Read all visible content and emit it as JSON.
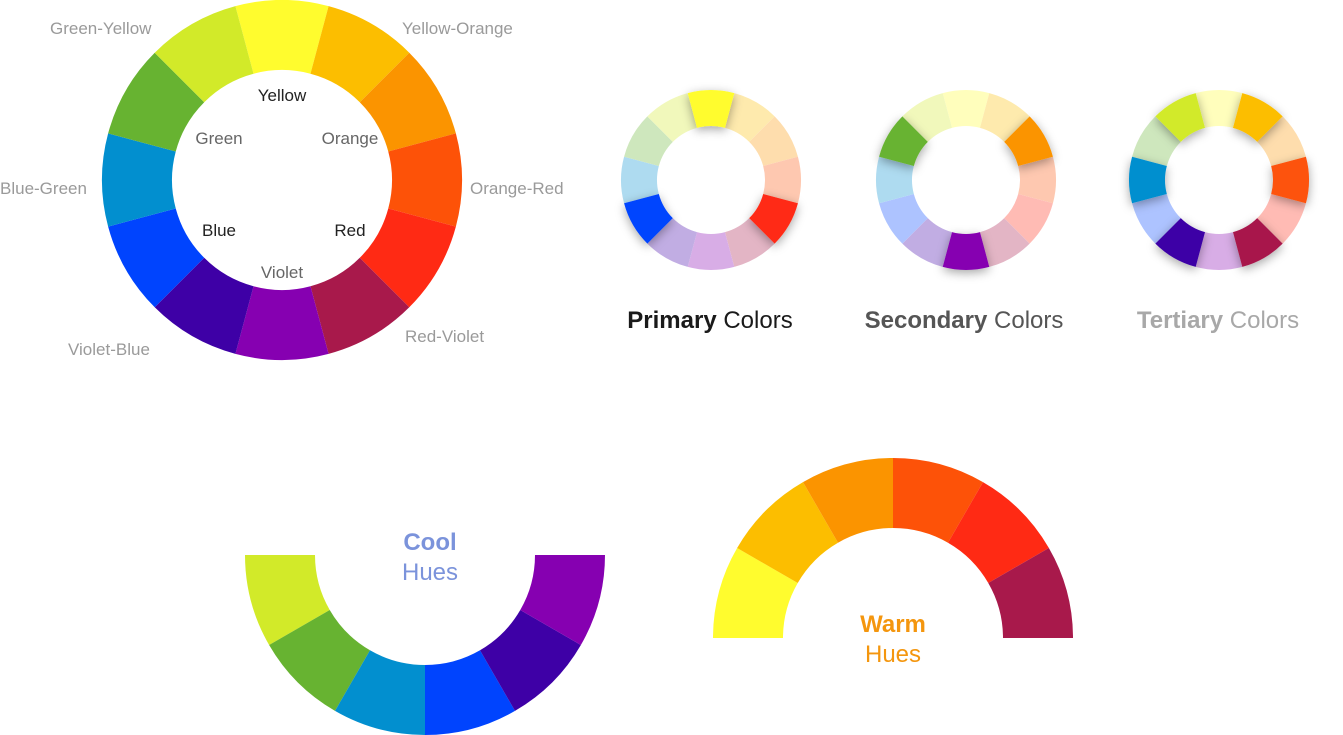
{
  "colors": {
    "yellow": "#FFFC2E",
    "yellow_orange": "#FCBE00",
    "orange": "#FB9400",
    "orange_red": "#FD5208",
    "red": "#FF2A14",
    "red_violet": "#A8194B",
    "violet": "#8600B1",
    "violet_blue": "#3E00A6",
    "blue": "#0044FE",
    "blue_green": "#028FCF",
    "green": "#67B331",
    "green_yellow": "#D2EA29"
  },
  "wheel": {
    "outer_labels": [
      "Yellow-Orange",
      "Orange-Red",
      "Red-Violet",
      "Violet-Blue",
      "Blue-Green",
      "Green-Yellow"
    ],
    "inner_labels": [
      "Yellow",
      "Orange",
      "Red",
      "Violet",
      "Blue",
      "Green"
    ]
  },
  "schemes": [
    {
      "bold": "Primary",
      "rest": " Colors",
      "highlight": [
        0,
        4,
        8
      ],
      "color": "#1a1a1a"
    },
    {
      "bold": "Secondary",
      "rest": " Colors",
      "highlight": [
        2,
        6,
        10
      ],
      "color": "#555555"
    },
    {
      "bold": "Tertiary",
      "rest": " Colors",
      "highlight": [
        1,
        3,
        5,
        7,
        9,
        11
      ],
      "color": "#a8a8a8"
    }
  ],
  "cool": {
    "title_bold": "Cool",
    "title_rest": "Hues",
    "color": "#7B93DB"
  },
  "warm": {
    "title_bold": "Warm",
    "title_rest": "Hues",
    "color": "#F4960E"
  }
}
